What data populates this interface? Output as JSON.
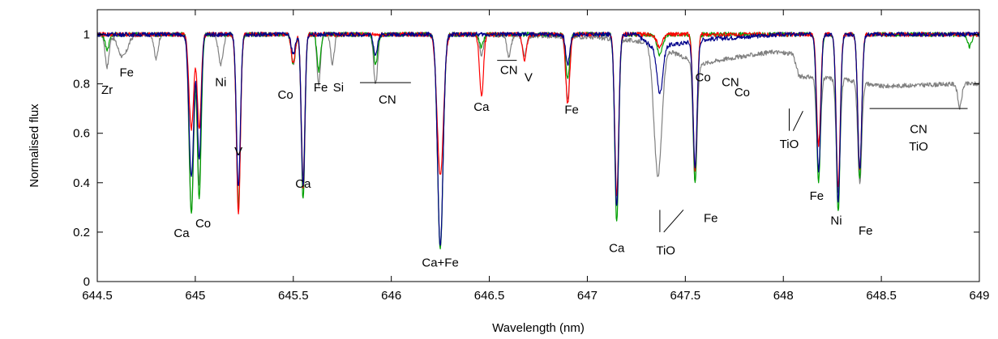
{
  "chart_data": {
    "type": "line",
    "xlabel": "Wavelength (nm)",
    "ylabel": "Normalised flux",
    "xlim": [
      644.5,
      649.0
    ],
    "ylim": [
      0,
      1.1
    ],
    "xticks": [
      644.5,
      645,
      645.5,
      646,
      646.5,
      647,
      647.5,
      648,
      648.5,
      649
    ],
    "xtick_labels": [
      "644.5",
      "645",
      "645.5",
      "646",
      "646.5",
      "647",
      "647.5",
      "648",
      "648.5",
      "649"
    ],
    "yticks": [
      0,
      0.2,
      0.4,
      0.6,
      0.8,
      1.0
    ],
    "ytick_labels": [
      "0",
      "0.2",
      "0.4",
      "0.6",
      "0.8",
      "1"
    ],
    "grid": false,
    "legend": "none",
    "continuum": 1.0,
    "series": [
      {
        "color": "#808080",
        "continuum_segments": [
          [
            644.5,
            1.0
          ],
          [
            646.3,
            1.0
          ],
          [
            647.0,
            0.99
          ],
          [
            647.3,
            0.97
          ],
          [
            647.58,
            0.88
          ],
          [
            647.7,
            0.9
          ],
          [
            647.95,
            0.93
          ],
          [
            648.05,
            0.92
          ],
          [
            648.08,
            0.83
          ],
          [
            648.3,
            0.82
          ],
          [
            648.5,
            0.79
          ],
          [
            648.9,
            0.8
          ],
          [
            649.0,
            0.8
          ]
        ],
        "lines": [
          [
            644.55,
            0.13,
            0.01
          ],
          [
            644.63,
            0.09,
            0.025
          ],
          [
            644.8,
            0.1,
            0.01
          ],
          [
            644.98,
            0.72,
            0.012
          ],
          [
            645.02,
            0.6,
            0.01
          ],
          [
            645.13,
            0.12,
            0.012
          ],
          [
            645.22,
            0.68,
            0.01
          ],
          [
            645.5,
            0.12,
            0.01
          ],
          [
            645.55,
            0.57,
            0.009
          ],
          [
            645.63,
            0.2,
            0.009
          ],
          [
            645.7,
            0.12,
            0.009
          ],
          [
            645.92,
            0.2,
            0.01
          ],
          [
            646.25,
            0.86,
            0.014
          ],
          [
            646.46,
            0.08,
            0.01
          ],
          [
            646.6,
            0.09,
            0.01
          ],
          [
            646.68,
            0.08,
            0.01
          ],
          [
            646.9,
            0.25,
            0.01
          ],
          [
            647.15,
            0.68,
            0.01
          ],
          [
            647.36,
            0.55,
            0.02
          ],
          [
            647.55,
            0.55,
            0.01
          ],
          [
            648.18,
            0.45,
            0.01
          ],
          [
            648.28,
            0.55,
            0.01
          ],
          [
            648.39,
            0.5,
            0.01
          ],
          [
            648.9,
            0.12,
            0.01
          ]
        ]
      },
      {
        "color": "#00a000",
        "continuum_segments": [
          [
            644.5,
            1.0
          ],
          [
            649.0,
            1.0
          ]
        ],
        "lines": [
          [
            644.55,
            0.06,
            0.01
          ],
          [
            644.98,
            0.72,
            0.011
          ],
          [
            645.02,
            0.67,
            0.01
          ],
          [
            645.22,
            0.7,
            0.01
          ],
          [
            645.5,
            0.12,
            0.01
          ],
          [
            645.55,
            0.67,
            0.009
          ],
          [
            645.63,
            0.15,
            0.009
          ],
          [
            645.92,
            0.12,
            0.01
          ],
          [
            646.25,
            0.87,
            0.014
          ],
          [
            646.46,
            0.05,
            0.01
          ],
          [
            646.9,
            0.18,
            0.01
          ],
          [
            647.15,
            0.76,
            0.01
          ],
          [
            647.37,
            0.08,
            0.015
          ],
          [
            647.55,
            0.6,
            0.01
          ],
          [
            648.18,
            0.6,
            0.01
          ],
          [
            648.28,
            0.72,
            0.01
          ],
          [
            648.39,
            0.58,
            0.01
          ],
          [
            648.95,
            0.05,
            0.01
          ]
        ]
      },
      {
        "color": "#ff0000",
        "continuum_segments": [
          [
            644.5,
            1.0
          ],
          [
            649.0,
            1.0
          ]
        ],
        "lines": [
          [
            644.98,
            0.38,
            0.012
          ],
          [
            645.02,
            0.38,
            0.01
          ],
          [
            645.22,
            0.72,
            0.01
          ],
          [
            645.5,
            0.12,
            0.01
          ],
          [
            645.55,
            0.62,
            0.009
          ],
          [
            646.25,
            0.57,
            0.016
          ],
          [
            646.46,
            0.25,
            0.01
          ],
          [
            646.68,
            0.1,
            0.01
          ],
          [
            646.9,
            0.28,
            0.01
          ],
          [
            647.15,
            0.65,
            0.01
          ],
          [
            647.37,
            0.05,
            0.015
          ],
          [
            647.55,
            0.55,
            0.01
          ],
          [
            648.18,
            0.45,
            0.01
          ],
          [
            648.28,
            0.62,
            0.01
          ],
          [
            648.39,
            0.55,
            0.01
          ]
        ]
      },
      {
        "color": "#00008b",
        "continuum_segments": [
          [
            644.5,
            1.0
          ],
          [
            647.25,
            1.0
          ],
          [
            647.33,
            0.95
          ],
          [
            647.45,
            0.96
          ],
          [
            647.6,
            0.98
          ],
          [
            648.0,
            1.0
          ],
          [
            649.0,
            1.0
          ]
        ],
        "lines": [
          [
            644.98,
            0.58,
            0.012
          ],
          [
            645.02,
            0.5,
            0.01
          ],
          [
            645.22,
            0.62,
            0.01
          ],
          [
            645.5,
            0.08,
            0.01
          ],
          [
            645.55,
            0.62,
            0.009
          ],
          [
            645.92,
            0.08,
            0.01
          ],
          [
            646.25,
            0.86,
            0.014
          ],
          [
            646.9,
            0.12,
            0.01
          ],
          [
            647.15,
            0.7,
            0.01
          ],
          [
            647.37,
            0.2,
            0.015
          ],
          [
            647.55,
            0.52,
            0.01
          ],
          [
            648.18,
            0.55,
            0.01
          ],
          [
            648.28,
            0.68,
            0.01
          ],
          [
            648.39,
            0.55,
            0.01
          ]
        ]
      }
    ],
    "annotations": [
      {
        "text": "Zr",
        "x": 644.55,
        "y": 0.76
      },
      {
        "text": "Fe",
        "x": 644.65,
        "y": 0.83
      },
      {
        "text": "Ni",
        "x": 645.13,
        "y": 0.79
      },
      {
        "text": "V",
        "x": 645.22,
        "y": 0.51
      },
      {
        "text": "Ca",
        "x": 644.93,
        "y": 0.18
      },
      {
        "text": "Co",
        "x": 645.04,
        "y": 0.22
      },
      {
        "text": "Co",
        "x": 645.46,
        "y": 0.74
      },
      {
        "text": "Ca",
        "x": 645.55,
        "y": 0.38
      },
      {
        "text": "Fe",
        "x": 645.64,
        "y": 0.77
      },
      {
        "text": "Si",
        "x": 645.73,
        "y": 0.77
      },
      {
        "text": "CN",
        "x": 645.98,
        "y": 0.72
      },
      {
        "text": "Ca+Fe",
        "x": 646.25,
        "y": 0.06
      },
      {
        "text": "Ca",
        "x": 646.46,
        "y": 0.69
      },
      {
        "text": "CN",
        "x": 646.6,
        "y": 0.84
      },
      {
        "text": "V",
        "x": 646.7,
        "y": 0.81
      },
      {
        "text": "Fe",
        "x": 646.92,
        "y": 0.68
      },
      {
        "text": "Ca",
        "x": 647.15,
        "y": 0.12
      },
      {
        "text": "TiO",
        "x": 647.4,
        "y": 0.11
      },
      {
        "text": "Fe",
        "x": 647.63,
        "y": 0.24
      },
      {
        "text": "Co",
        "x": 647.59,
        "y": 0.81
      },
      {
        "text": "CN",
        "x": 647.73,
        "y": 0.79
      },
      {
        "text": "Co",
        "x": 647.79,
        "y": 0.75
      },
      {
        "text": "TiO",
        "x": 648.03,
        "y": 0.54
      },
      {
        "text": "Fe",
        "x": 648.17,
        "y": 0.33
      },
      {
        "text": "Ni",
        "x": 648.27,
        "y": 0.23
      },
      {
        "text": "Fe",
        "x": 648.42,
        "y": 0.19
      },
      {
        "text": "CN",
        "x": 648.69,
        "y": 0.6
      },
      {
        "text": "TiO",
        "x": 648.69,
        "y": 0.53
      }
    ],
    "annotation_lines": [
      {
        "x1": 645.84,
        "y1": 0.805,
        "x2": 646.1,
        "y2": 0.805
      },
      {
        "x1": 646.54,
        "y1": 0.895,
        "x2": 646.64,
        "y2": 0.895
      },
      {
        "x1": 647.37,
        "y1": 0.2,
        "x2": 647.37,
        "y2": 0.29
      },
      {
        "x1": 647.39,
        "y1": 0.2,
        "x2": 647.49,
        "y2": 0.29
      },
      {
        "x1": 648.03,
        "y1": 0.61,
        "x2": 648.03,
        "y2": 0.7
      },
      {
        "x1": 648.05,
        "y1": 0.61,
        "x2": 648.1,
        "y2": 0.69
      },
      {
        "x1": 648.44,
        "y1": 0.7,
        "x2": 648.94,
        "y2": 0.7
      }
    ]
  }
}
